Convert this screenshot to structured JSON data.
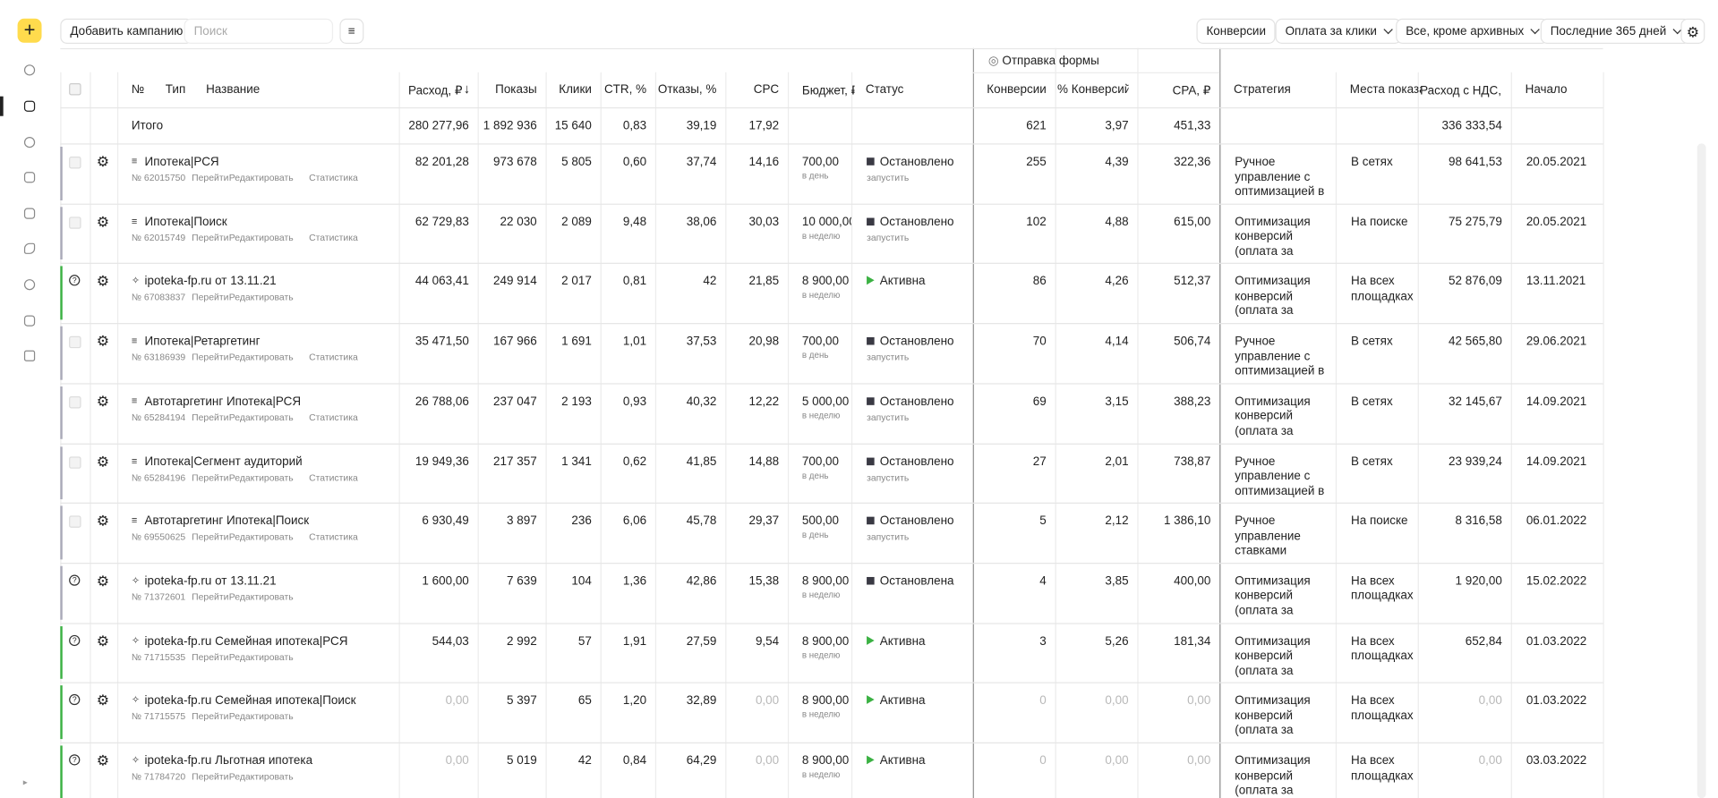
{
  "toolbar": {
    "add_campaign": "Добавить кампанию",
    "search_placeholder": "Поиск",
    "filters": [
      "Конверсии",
      "Оплата за клики",
      "Все, кроме архивных",
      "Последние 365 дней"
    ]
  },
  "table": {
    "group_header": "Отправка формы",
    "columns": [
      "№",
      "Тип",
      "Название",
      "Расход, ₽",
      "Показы",
      "Клики",
      "CTR, %",
      "Отказы, %",
      "CPC",
      "Бюджет, ₽",
      "Статус",
      "Конверсии",
      "% Конверсий",
      "CPA, ₽",
      "Стратегия",
      "Места показа",
      "Расход с НДС, ₽",
      "Начало"
    ],
    "total": {
      "label": "Итого",
      "spend": "280 277,96",
      "impressions": "1 892 936",
      "clicks": "15 640",
      "ctr": "0,83",
      "bounces": "39,19",
      "cpc": "17,92",
      "conversions": "621",
      "conv_rate": "3,97",
      "cpa": "451,33",
      "spend_vat": "336 333,54"
    },
    "rows": [
      {
        "name": "Ипотека|РСЯ",
        "number": "№ 62015750",
        "links": [
          "Перейти",
          "Редактировать",
          "Статистика"
        ],
        "spend": "82 201,28",
        "impressions": "973 678",
        "clicks": "5 805",
        "ctr": "0,60",
        "bounces": "37,74",
        "cpc": "14,16",
        "budget": "700,00",
        "budget_period": "в день",
        "status": "Остановлено",
        "action": "запустить",
        "status_marker": "square",
        "accent": "#a9a9b8",
        "conversions": "255",
        "conv_rate": "4,39",
        "cpa": "322,36",
        "strategy": [
          "Ручное",
          "управление с",
          "оптимизацией в"
        ],
        "places": [
          "В сетях"
        ],
        "spend_vat": "98 641,53",
        "start": "20.05.2021"
      },
      {
        "name": "Ипотека|Поиск",
        "number": "№ 62015749",
        "links": [
          "Перейти",
          "Редактировать",
          "Статистика"
        ],
        "spend": "62 729,83",
        "impressions": "22 030",
        "clicks": "2 089",
        "ctr": "9,48",
        "bounces": "38,06",
        "cpc": "30,03",
        "budget": "10 000,00",
        "budget_period": "в неделю",
        "status": "Остановлено",
        "action": "запустить",
        "status_marker": "square",
        "accent": "#a9a9b8",
        "conversions": "102",
        "conv_rate": "4,88",
        "cpa": "615,00",
        "strategy": [
          "Оптимизация",
          "конверсий",
          "(оплата за"
        ],
        "places": [
          "На поиске"
        ],
        "spend_vat": "75 275,79",
        "start": "20.05.2021"
      },
      {
        "name": "ipoteka-fp.ru от 13.11.21",
        "number": "№ 67083837",
        "links": [
          "Перейти",
          "Редактировать"
        ],
        "spend": "44 063,41",
        "impressions": "249 914",
        "clicks": "2 017",
        "ctr": "0,81",
        "bounces": "42",
        "cpc": "21,85",
        "budget": "8 900,00",
        "budget_period": "в неделю",
        "status": "Активна",
        "status_marker": "play",
        "accent": "#3bb143",
        "conversions": "86",
        "conv_rate": "4,26",
        "cpa": "512,37",
        "strategy": [
          "Оптимизация",
          "конверсий",
          "(оплата за"
        ],
        "places": [
          "На всех",
          "площадках"
        ],
        "spend_vat": "52 876,09",
        "start": "13.11.2021"
      },
      {
        "name": "Ипотека|Ретаргетинг",
        "number": "№ 63186939",
        "links": [
          "Перейти",
          "Редактировать",
          "Статистика"
        ],
        "spend": "35 471,50",
        "impressions": "167 966",
        "clicks": "1 691",
        "ctr": "1,01",
        "bounces": "37,53",
        "cpc": "20,98",
        "budget": "700,00",
        "budget_period": "в день",
        "status": "Остановлено",
        "action": "запустить",
        "status_marker": "square",
        "accent": "#a9a9b8",
        "conversions": "70",
        "conv_rate": "4,14",
        "cpa": "506,74",
        "strategy": [
          "Ручное",
          "управление с",
          "оптимизацией в"
        ],
        "places": [
          "В сетях"
        ],
        "spend_vat": "42 565,80",
        "start": "29.06.2021"
      },
      {
        "name": "Автотаргетинг Ипотека|РСЯ",
        "number": "№ 65284194",
        "links": [
          "Перейти",
          "Редактировать",
          "Статистика"
        ],
        "spend": "26 788,06",
        "impressions": "237 047",
        "clicks": "2 193",
        "ctr": "0,93",
        "bounces": "40,32",
        "cpc": "12,22",
        "budget": "5 000,00",
        "budget_period": "в неделю",
        "status": "Остановлено",
        "action": "запустить",
        "status_marker": "square",
        "accent": "#a9a9b8",
        "conversions": "69",
        "conv_rate": "3,15",
        "cpa": "388,23",
        "strategy": [
          "Оптимизация",
          "конверсий",
          "(оплата за"
        ],
        "places": [
          "В сетях"
        ],
        "spend_vat": "32 145,67",
        "start": "14.09.2021"
      },
      {
        "name": "Ипотека|Сегмент аудиторий",
        "number": "№ 65284196",
        "links": [
          "Перейти",
          "Редактировать",
          "Статистика"
        ],
        "spend": "19 949,36",
        "impressions": "217 357",
        "clicks": "1 341",
        "ctr": "0,62",
        "bounces": "41,85",
        "cpc": "14,88",
        "budget": "700,00",
        "budget_period": "в день",
        "status": "Остановлено",
        "action": "запустить",
        "status_marker": "square",
        "accent": "#a9a9b8",
        "conversions": "27",
        "conv_rate": "2,01",
        "cpa": "738,87",
        "strategy": [
          "Ручное",
          "управление с",
          "оптимизацией в"
        ],
        "places": [
          "В сетях"
        ],
        "spend_vat": "23 939,24",
        "start": "14.09.2021"
      },
      {
        "name": "Автотаргетинг Ипотека|Поиск",
        "number": "№ 69550625",
        "links": [
          "Перейти",
          "Редактировать",
          "Статистика"
        ],
        "spend": "6 930,49",
        "impressions": "3 897",
        "clicks": "236",
        "ctr": "6,06",
        "bounces": "45,78",
        "cpc": "29,37",
        "budget": "500,00",
        "budget_period": "в день",
        "status": "Остановлено",
        "action": "запустить",
        "status_marker": "square",
        "accent": "#a9a9b8",
        "conversions": "5",
        "conv_rate": "2,12",
        "cpa": "1 386,10",
        "strategy": [
          "Ручное",
          "управление",
          "ставками"
        ],
        "places": [
          "На поиске"
        ],
        "spend_vat": "8 316,58",
        "start": "06.01.2022"
      },
      {
        "name": "ipoteka-fp.ru от 13.11.21",
        "number": "№ 71372601",
        "links": [
          "Перейти",
          "Редактировать"
        ],
        "spend": "1 600,00",
        "impressions": "7 639",
        "clicks": "104",
        "ctr": "1,36",
        "bounces": "42,86",
        "cpc": "15,38",
        "budget": "8 900,00",
        "budget_period": "в неделю",
        "status": "Остановлена",
        "status_marker": "square",
        "accent": "#a9a9b8",
        "conversions": "4",
        "conv_rate": "3,85",
        "cpa": "400,00",
        "strategy": [
          "Оптимизация",
          "конверсий",
          "(оплата за"
        ],
        "places": [
          "На всех",
          "площадках"
        ],
        "spend_vat": "1 920,00",
        "start": "15.02.2022"
      },
      {
        "name": "ipoteka-fp.ru Семейная ипотека|РСЯ",
        "number": "№ 71715535",
        "links": [
          "Перейти",
          "Редактировать"
        ],
        "spend": "544,03",
        "impressions": "2 992",
        "clicks": "57",
        "ctr": "1,91",
        "bounces": "27,59",
        "cpc": "9,54",
        "budget": "8 900,00",
        "budget_period": "в неделю",
        "status": "Активна",
        "status_marker": "play",
        "accent": "#3bb143",
        "conversions": "3",
        "conv_rate": "5,26",
        "cpa": "181,34",
        "strategy": [
          "Оптимизация",
          "конверсий",
          "(оплата за"
        ],
        "places": [
          "На всех",
          "площадках"
        ],
        "spend_vat": "652,84",
        "start": "01.03.2022"
      },
      {
        "name": "ipoteka-fp.ru Семейная ипотека|Поиск",
        "number": "№ 71715575",
        "links": [
          "Перейти",
          "Редактировать"
        ],
        "spend": "0,00",
        "impressions": "5 397",
        "clicks": "65",
        "ctr": "1,20",
        "bounces": "32,89",
        "cpc": "0,00",
        "budget": "8 900,00",
        "budget_period": "в неделю",
        "status": "Активна",
        "status_marker": "play",
        "accent": "#3bb143",
        "conversions": "0",
        "conv_rate": "0,00",
        "cpa": "0,00",
        "strategy": [
          "Оптимизация",
          "конверсий",
          "(оплата за"
        ],
        "places": [
          "На всех",
          "площадках"
        ],
        "spend_vat": "0,00",
        "start": "01.03.2022"
      },
      {
        "name": "ipoteka-fp.ru Льготная ипотека",
        "number": "№ 71784720",
        "links": [
          "Перейти",
          "Редактировать"
        ],
        "spend": "0,00",
        "impressions": "5 019",
        "clicks": "42",
        "ctr": "0,84",
        "bounces": "64,29",
        "cpc": "0,00",
        "budget": "8 900,00",
        "budget_period": "в неделю",
        "status": "Активна",
        "status_marker": "play",
        "accent": "#3bb143",
        "conversions": "0",
        "conv_rate": "0,00",
        "cpa": "0,00",
        "strategy": [
          "Оптимизация",
          "конверсий",
          "(оплата за"
        ],
        "places": [
          "На всех",
          "площадках"
        ],
        "spend_vat": "0,00",
        "start": "03.03.2022"
      }
    ]
  }
}
